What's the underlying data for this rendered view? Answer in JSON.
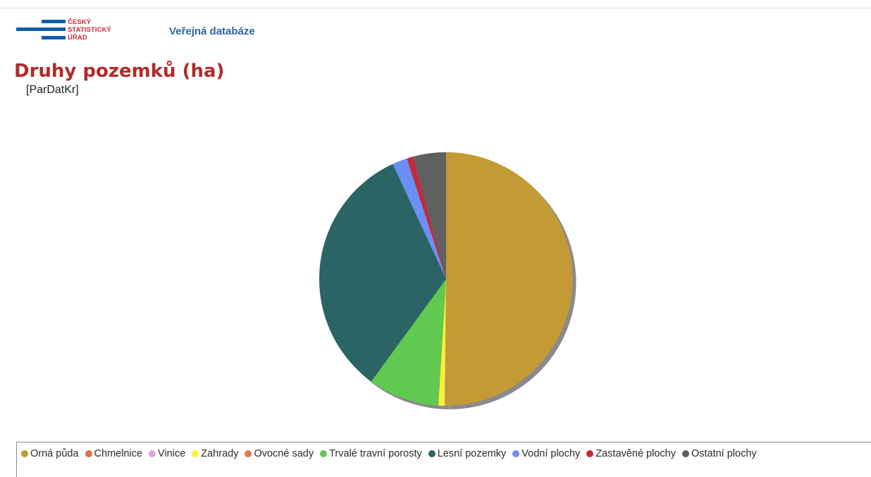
{
  "header": {
    "logo_lines": [
      "ČESKÝ",
      "STATISTICKÝ",
      "ÚŘAD"
    ],
    "nav_link": "Veřejná databáze"
  },
  "page": {
    "title": "Druhy pozemků (ha)",
    "code": "[ParDatKr]"
  },
  "colors": {
    "logo_blue": "#0c5ea8",
    "logo_red": "#d02636",
    "title_red": "#b22a2a",
    "link_blue": "#2a64a6"
  },
  "chart_data": {
    "type": "pie",
    "title": "Druhy pozemků (ha)",
    "legend_position": "bottom",
    "start_angle": "12 o'clock, clockwise",
    "units": "approx. share of total (%)",
    "slices": [
      {
        "label": "Orná půda",
        "value": 50.0,
        "color": "#c39a35"
      },
      {
        "label": "Chmelnice",
        "value": 0.05,
        "color": "#e07040"
      },
      {
        "label": "Vinice",
        "value": 0.05,
        "color": "#e2a0e6"
      },
      {
        "label": "Zahrady",
        "value": 0.8,
        "color": "#f5f531"
      },
      {
        "label": "Ovocné sady",
        "value": 0.05,
        "color": "#e8784a"
      },
      {
        "label": "Trvalé travní porosty",
        "value": 9.0,
        "color": "#5fc950"
      },
      {
        "label": "Lesní pozemky",
        "value": 33.0,
        "color": "#2a6464"
      },
      {
        "label": "Vodní plochy",
        "value": 1.9,
        "color": "#6b8ff5"
      },
      {
        "label": "Zastavěné plochy",
        "value": 0.8,
        "color": "#c32a3a"
      },
      {
        "label": "Ostatní plochy",
        "value": 4.2,
        "color": "#606060"
      }
    ]
  }
}
